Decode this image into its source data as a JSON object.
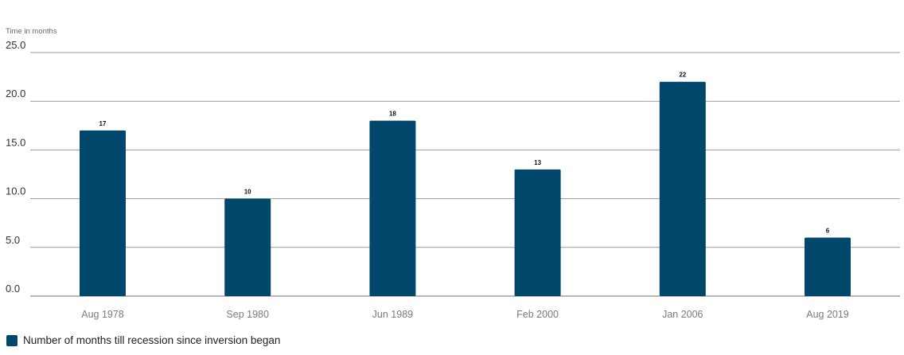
{
  "chart_data": {
    "type": "bar",
    "y_unit_label": "Time in months",
    "categories": [
      "Aug 1978",
      "Sep 1980",
      "Jun 1989",
      "Feb 2000",
      "Jan 2006",
      "Aug 2019"
    ],
    "series": [
      {
        "name": "Number of months till recession since inversion began",
        "values": [
          17,
          10,
          18,
          13,
          22,
          6
        ]
      }
    ],
    "data_labels": [
      "17",
      "10",
      "18",
      "13",
      "22",
      "6"
    ],
    "y_ticks": [
      "0.0",
      "5.0",
      "10.0",
      "15.0",
      "20.0",
      "25.0"
    ],
    "ylim": [
      0,
      25
    ],
    "grid": true,
    "legend_position": "bottom-left",
    "bar_color": "#00476b"
  }
}
